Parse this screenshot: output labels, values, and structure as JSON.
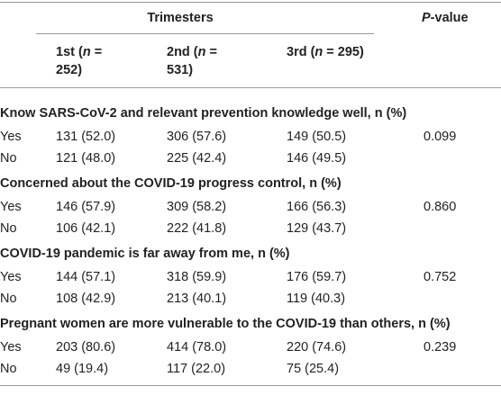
{
  "header": {
    "group": "Trimesters",
    "p_value": {
      "italic": "P",
      "text": "-value"
    },
    "columns": [
      {
        "pre": "1st (",
        "italic": "n",
        "post": " = 252)"
      },
      {
        "pre": "2nd (",
        "italic": "n",
        "post": " = 531)"
      },
      {
        "pre": "3rd (",
        "italic": "n",
        "post": " = 295)"
      }
    ]
  },
  "sections": [
    {
      "title": "Know SARS-CoV-2 and relevant prevention knowledge well, n (%)",
      "rows": [
        [
          "Yes",
          "131 (52.0)",
          "306 (57.6)",
          "149 (50.5)",
          "0.099"
        ],
        [
          "No",
          "121 (48.0)",
          "225 (42.4)",
          "146 (49.5)"
        ]
      ]
    },
    {
      "title": "Concerned about the COVID-19 progress control, n (%)",
      "rows": [
        [
          "Yes",
          "146 (57.9)",
          "309 (58.2)",
          "166 (56.3)",
          "0.860"
        ],
        [
          "No",
          "106 (42.1)",
          "222 (41.8)",
          "129 (43.7)"
        ]
      ]
    },
    {
      "title": "COVID-19 pandemic is far away from me, n (%)",
      "rows": [
        [
          "Yes",
          "144 (57.1)",
          "318 (59.9)",
          "176 (59.7)",
          "0.752"
        ],
        [
          "No",
          "108 (42.9)",
          "213 (40.1)",
          "119 (40.3)"
        ]
      ]
    },
    {
      "title": "Pregnant women are more vulnerable to the COVID-19 than others, n (%)",
      "rows": [
        [
          "Yes",
          "203 (80.6)",
          "414 (78.0)",
          "220 (74.6)",
          "0.239"
        ],
        [
          "No",
          "49 (19.4)",
          "117 (22.0)",
          "75 (25.4)"
        ]
      ]
    }
  ]
}
